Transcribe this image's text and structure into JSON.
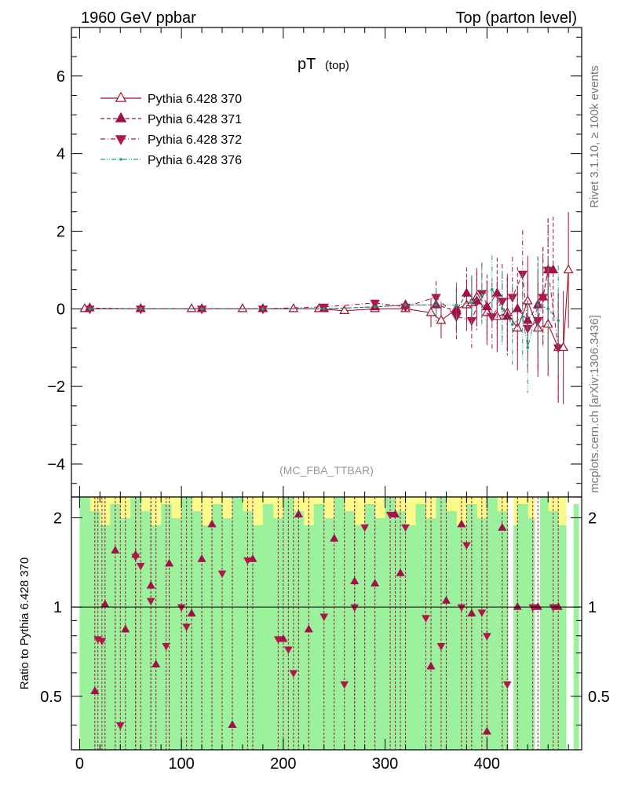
{
  "header": {
    "left": "1960 GeV ppbar",
    "right": "Top (parton level)"
  },
  "side_texts": {
    "rivet": "Rivet 3.1.10, ≥ 100k events",
    "mcplots": "mcplots.cern.ch [arXiv:1306.3436]"
  },
  "chart_data": [
    {
      "type": "line",
      "title": "pT",
      "title_sub": "(top)",
      "watermark": "(MC_FBA_TTBAR)",
      "xlim": [
        -8,
        493
      ],
      "ylim": [
        -4.85,
        7.25
      ],
      "x_ticks": [
        0,
        100,
        200,
        300,
        400
      ],
      "x_tick_labels": [
        "0",
        "100",
        "200",
        "300",
        "400"
      ],
      "y_ticks": [
        -4,
        -2,
        0,
        2,
        4,
        6
      ],
      "y_tick_labels": [
        "−4",
        "−2",
        "0",
        "2",
        "4",
        "6"
      ],
      "legend_position": "top-left",
      "grid": false,
      "series": [
        {
          "name": "Pythia 6.428 370",
          "color": "#a0112b",
          "style": "solid",
          "marker": "triangle-up-open",
          "x": [
            5,
            60,
            110,
            160,
            210,
            235,
            260,
            290,
            320,
            345,
            355,
            370,
            380,
            385,
            390,
            400,
            410,
            420,
            430,
            440,
            450,
            460,
            470,
            475,
            480
          ],
          "y": [
            0,
            0,
            0,
            0,
            0,
            0,
            -0.05,
            0,
            0,
            -0.1,
            -0.3,
            0,
            0.1,
            0.15,
            0.3,
            -0.1,
            -0.2,
            -0.1,
            -0.5,
            0.2,
            -0.5,
            -0.4,
            -1,
            -1,
            1
          ]
        },
        {
          "name": "Pythia 6.428 371",
          "color": "#a0104a",
          "style": "dashed",
          "marker": "triangle-up-filled",
          "x": [
            10,
            60,
            120,
            180,
            240,
            290,
            320,
            350,
            370,
            380,
            390,
            400,
            410,
            420,
            430,
            440,
            450,
            455,
            460,
            465
          ],
          "y": [
            0.02,
            0,
            0,
            0,
            0,
            0.05,
            0.1,
            0.1,
            -0.05,
            0.4,
            0.2,
            0.05,
            0.4,
            -0.2,
            0,
            -0.3,
            0.1,
            0.3,
            1,
            1
          ]
        },
        {
          "name": "Pythia 6.428 372",
          "color": "#b0164a",
          "style": "dashdot",
          "marker": "triangle-down-filled",
          "x": [
            10,
            60,
            120,
            180,
            240,
            290,
            320,
            350,
            370,
            385,
            395,
            405,
            415,
            425,
            435,
            440,
            450,
            455,
            460,
            470
          ],
          "y": [
            0,
            0,
            0,
            0,
            0.05,
            0.15,
            0.05,
            0.3,
            -0.2,
            -0.3,
            0.4,
            -0.2,
            0.2,
            0.3,
            0.9,
            -0.5,
            -0.3,
            0.3,
            1,
            -1
          ]
        },
        {
          "name": "Pythia 6.428 376",
          "color": "#1a9e88",
          "style": "dashdotdot",
          "marker": "dot",
          "x": [
            10,
            60,
            120,
            180,
            240,
            290,
            320,
            350,
            370,
            385,
            395,
            405,
            415,
            425,
            435,
            440,
            450,
            460,
            470
          ],
          "y": [
            0,
            0,
            0,
            0,
            0,
            0.05,
            0.1,
            0.1,
            0.1,
            0.15,
            0.35,
            0.5,
            0,
            -0.4,
            -0.2,
            -1,
            0.1,
            0,
            -0.3
          ]
        }
      ]
    },
    {
      "type": "line",
      "ylabel": "Ratio to Pythia 6.428 370",
      "xlim": [
        -8,
        493
      ],
      "ylim": [
        0.33,
        2.35
      ],
      "y_scale": "log",
      "y_ticks": [
        0.5,
        1,
        2
      ],
      "y_tick_labels": [
        "0.5",
        "1",
        "2"
      ],
      "reference_line": 1,
      "band_colors": {
        "inner": "#9cf29c",
        "outer": "#fbfb8c"
      },
      "ratio_markers_up": {
        "color": "#a0104a",
        "x": [
          15,
          25,
          35,
          45,
          55,
          70,
          75,
          88,
          110,
          120,
          130,
          150,
          170,
          200,
          215,
          225,
          250,
          270,
          290,
          310,
          315,
          345,
          360,
          375,
          385,
          400,
          415,
          430,
          450,
          470
        ],
        "y": [
          0.52,
          1.02,
          1.55,
          0.84,
          1.5,
          1.18,
          0.64,
          1.4,
          0.95,
          1.45,
          1.9,
          0.4,
          1.45,
          0.78,
          2.05,
          0.84,
          1.7,
          1.22,
          1.2,
          2.05,
          1.3,
          0.63,
          1.05,
          1.9,
          0.95,
          0.38,
          1.85,
          1.0,
          1.0,
          1.0
        ]
      },
      "ratio_markers_down": {
        "color": "#b0164a",
        "x": [
          18,
          22,
          40,
          55,
          60,
          70,
          85,
          100,
          105,
          140,
          165,
          195,
          205,
          210,
          240,
          260,
          270,
          280,
          305,
          320,
          340,
          355,
          375,
          380,
          395,
          400,
          420,
          445,
          465
        ],
        "y": [
          0.78,
          0.77,
          0.4,
          1.48,
          1.38,
          1.05,
          0.74,
          1.0,
          0.86,
          1.3,
          1.44,
          0.78,
          0.72,
          0.6,
          0.93,
          0.55,
          1.0,
          1.86,
          2.05,
          1.86,
          0.92,
          0.74,
          1.0,
          1.62,
          0.96,
          0.8,
          0.55,
          1.0,
          1.0
        ]
      }
    }
  ]
}
